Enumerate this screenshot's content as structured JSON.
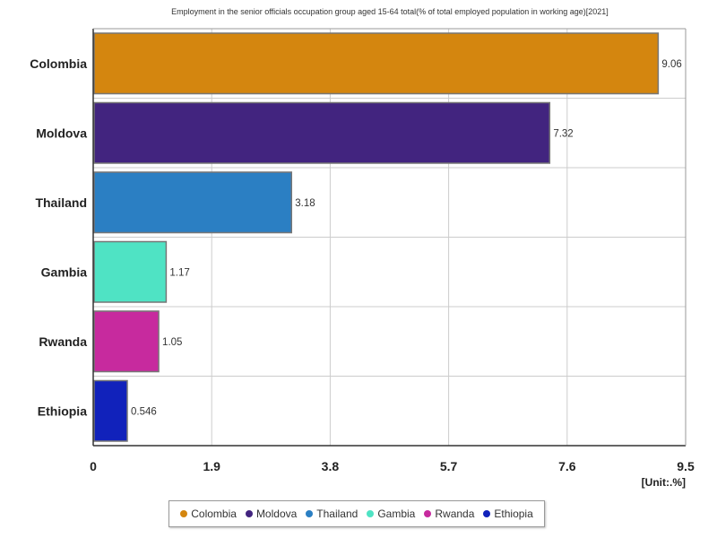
{
  "chart_data": {
    "type": "bar",
    "orientation": "horizontal",
    "title": "Employment in the senior officials occupation group aged 15-64 total(% of total employed population in working age)[2021]",
    "unit": "[Unit:.%]",
    "categories": [
      "Colombia",
      "Moldova",
      "Thailand",
      "Gambia",
      "Rwanda",
      "Ethiopia"
    ],
    "values": [
      9.06,
      7.32,
      3.18,
      1.17,
      1.05,
      0.546
    ],
    "value_labels": [
      "9.06",
      "7.32",
      "3.18",
      "1.17",
      "1.05",
      "0.546"
    ],
    "colors": [
      "#d4860f",
      "#42247f",
      "#2b7fc3",
      "#4fe3c4",
      "#c72a9e",
      "#1122bb"
    ],
    "xlim": [
      0,
      9.5
    ],
    "xticks": [
      0,
      1.9,
      3.8,
      5.7,
      7.6,
      9.5
    ],
    "xtick_labels": [
      "0",
      "1.9",
      "3.8",
      "5.7",
      "7.6",
      "9.5"
    ],
    "grid": true,
    "legend_position": "bottom-center"
  }
}
